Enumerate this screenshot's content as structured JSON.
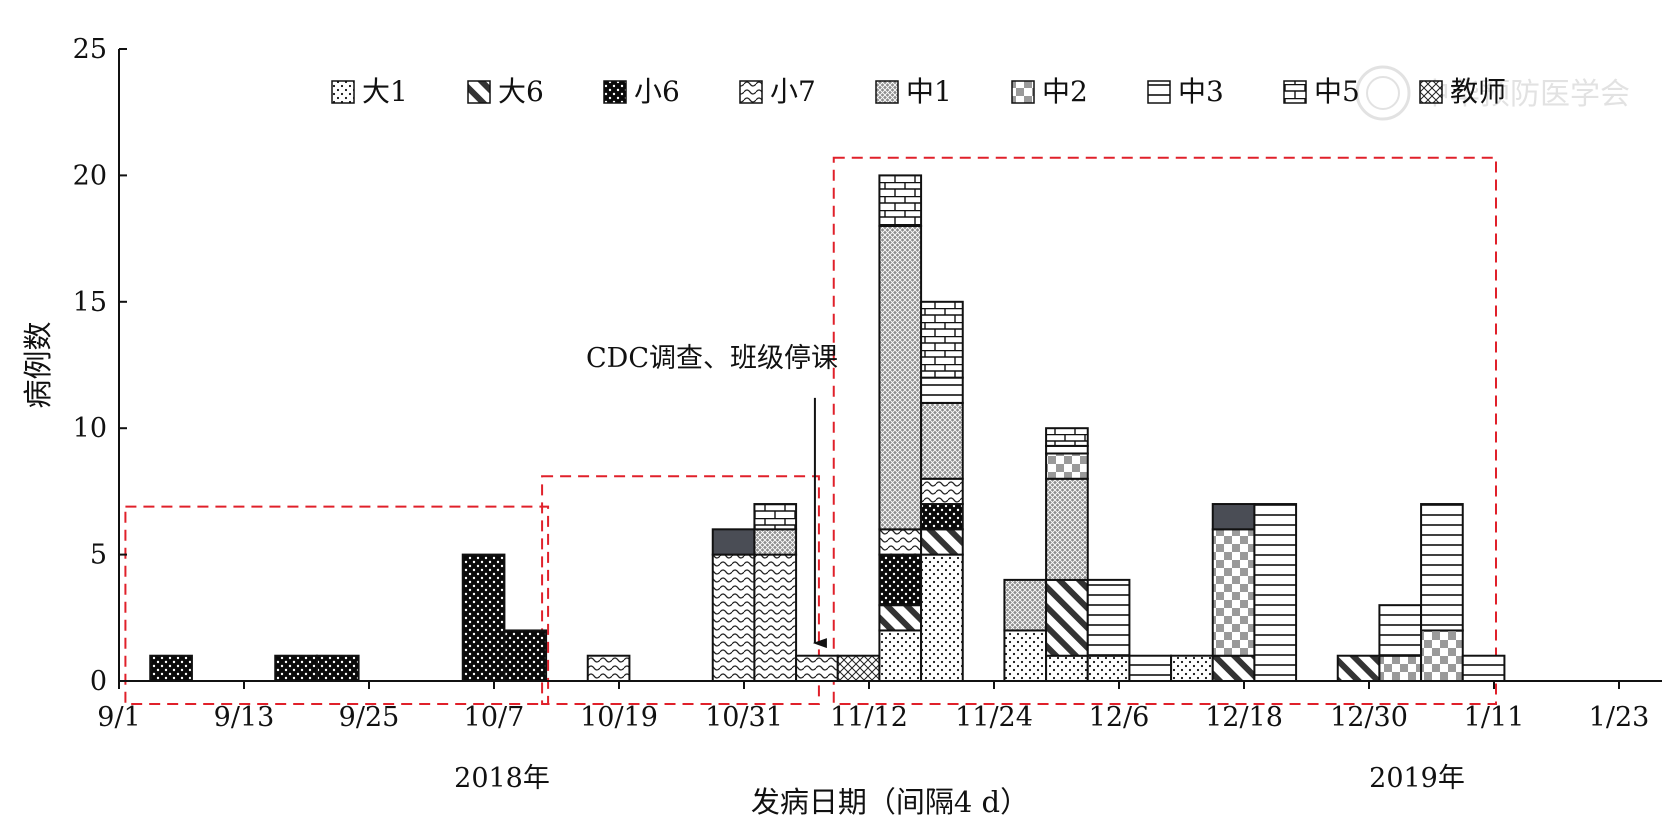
{
  "chart_data": {
    "type": "bar",
    "stacked": true,
    "ylabel": "病例数",
    "xlabel": "发病日期（间隔4 d）",
    "ylim": [
      0,
      25
    ],
    "yticks": [
      0,
      5,
      10,
      15,
      20,
      25
    ],
    "x_tick_labels": [
      "9/1",
      "9/13",
      "9/25",
      "10/7",
      "10/19",
      "10/31",
      "11/12",
      "11/24",
      "12/6",
      "12/18",
      "12/30",
      "1/11",
      "1/23"
    ],
    "year_labels": [
      "2018年",
      "2019年"
    ],
    "legend_placement": "top",
    "series": [
      {
        "name": "大1",
        "pattern": "dots-sparse"
      },
      {
        "name": "大6",
        "pattern": "diagonal"
      },
      {
        "name": "小6",
        "pattern": "black-dots"
      },
      {
        "name": "小7",
        "pattern": "wave"
      },
      {
        "name": "中1",
        "pattern": "fine-grid"
      },
      {
        "name": "中2",
        "pattern": "checker"
      },
      {
        "name": "中3",
        "pattern": "horizontal"
      },
      {
        "name": "中5",
        "pattern": "brick"
      },
      {
        "name": "教师",
        "pattern": "crosshatch"
      },
      {
        "pattern": "dark-solid"
      }
    ],
    "bars": [
      {
        "period_start": "9/4",
        "segments": [
          {
            "s": 2,
            "v": 1
          }
        ]
      },
      {
        "period_start": "9/16",
        "segments": [
          {
            "s": 2,
            "v": 1
          }
        ]
      },
      {
        "period_start": "9/20",
        "segments": [
          {
            "s": 2,
            "v": 1
          }
        ]
      },
      {
        "period_start": "10/4",
        "segments": [
          {
            "s": 2,
            "v": 5
          }
        ]
      },
      {
        "period_start": "10/8",
        "segments": [
          {
            "s": 2,
            "v": 2
          }
        ]
      },
      {
        "period_start": "10/16",
        "segments": [
          {
            "s": 3,
            "v": 1
          }
        ]
      },
      {
        "period_start": "10/28",
        "segments": [
          {
            "s": 3,
            "v": 5
          },
          {
            "s": 9,
            "v": 1
          }
        ]
      },
      {
        "period_start": "11/1",
        "segments": [
          {
            "s": 3,
            "v": 5
          },
          {
            "s": 4,
            "v": 1
          },
          {
            "s": 7,
            "v": 1
          }
        ]
      },
      {
        "period_start": "11/5",
        "segments": [
          {
            "s": 3,
            "v": 1
          }
        ]
      },
      {
        "period_start": "11/9",
        "segments": [
          {
            "s": 8,
            "v": 1
          }
        ]
      },
      {
        "period_start": "11/13",
        "segments": [
          {
            "s": 0,
            "v": 2
          },
          {
            "s": 1,
            "v": 1
          },
          {
            "s": 2,
            "v": 2
          },
          {
            "s": 3,
            "v": 1
          },
          {
            "s": 4,
            "v": 12
          },
          {
            "s": 7,
            "v": 2
          }
        ]
      },
      {
        "period_start": "11/17",
        "segments": [
          {
            "s": 0,
            "v": 5
          },
          {
            "s": 1,
            "v": 1
          },
          {
            "s": 2,
            "v": 1
          },
          {
            "s": 3,
            "v": 1
          },
          {
            "s": 4,
            "v": 3
          },
          {
            "s": 6,
            "v": 1
          },
          {
            "s": 7,
            "v": 3
          }
        ]
      },
      {
        "period_start": "11/25",
        "segments": [
          {
            "s": 0,
            "v": 2
          },
          {
            "s": 4,
            "v": 2
          }
        ]
      },
      {
        "period_start": "11/29",
        "segments": [
          {
            "s": 0,
            "v": 1
          },
          {
            "s": 1,
            "v": 3
          },
          {
            "s": 4,
            "v": 4
          },
          {
            "s": 5,
            "v": 1
          },
          {
            "s": 6,
            "v": 0.3
          },
          {
            "s": 7,
            "v": 0.7
          }
        ]
      },
      {
        "period_start": "12/3",
        "segments": [
          {
            "s": 0,
            "v": 1
          },
          {
            "s": 6,
            "v": 3
          }
        ]
      },
      {
        "period_start": "12/7",
        "segments": [
          {
            "s": 6,
            "v": 1
          }
        ]
      },
      {
        "period_start": "12/11",
        "segments": [
          {
            "s": 0,
            "v": 1
          }
        ]
      },
      {
        "period_start": "12/15",
        "segments": [
          {
            "s": 1,
            "v": 1
          },
          {
            "s": 5,
            "v": 5
          },
          {
            "s": 9,
            "v": 1
          }
        ]
      },
      {
        "period_start": "12/19",
        "segments": [
          {
            "s": 6,
            "v": 7
          }
        ]
      },
      {
        "period_start": "12/27",
        "segments": [
          {
            "s": 1,
            "v": 1
          }
        ]
      },
      {
        "period_start": "12/31",
        "segments": [
          {
            "s": 5,
            "v": 1
          },
          {
            "s": 6,
            "v": 2
          }
        ]
      },
      {
        "period_start": "1/4",
        "segments": [
          {
            "s": 5,
            "v": 2
          },
          {
            "s": 6,
            "v": 5
          }
        ]
      },
      {
        "period_start": "1/8",
        "segments": [
          {
            "s": 6,
            "v": 1
          }
        ]
      }
    ],
    "annotation": {
      "text": "CDC调查、班级停课",
      "arrow_to_date": "11/5",
      "arrow_from_y": 11.2,
      "arrow_to_y": 1.5
    },
    "highlight_boxes": [
      {
        "start": "9/2",
        "end": "10/12",
        "top": 6.9
      },
      {
        "start": "10/12",
        "end": "11/7",
        "top": 8.1
      },
      {
        "start": "11/9",
        "end": "1/11",
        "top": 20.7
      }
    ],
    "box_color": "#e0202a"
  },
  "watermark": {
    "text": "中华预防医学会"
  }
}
